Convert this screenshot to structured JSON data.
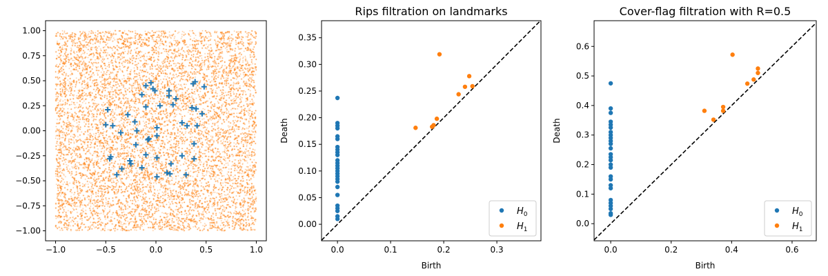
{
  "chart_data": [
    {
      "type": "scatter",
      "title": "",
      "xlabel": "",
      "ylabel": "",
      "xlim": [
        -1.1,
        1.1
      ],
      "ylim": [
        -1.1,
        1.1
      ],
      "xticks": [
        -1.0,
        -0.5,
        0.0,
        0.5,
        1.0
      ],
      "xtick_labels": [
        "−1.0",
        "−0.5",
        "0.0",
        "0.5",
        "1.0"
      ],
      "yticks": [
        -1.0,
        -0.75,
        -0.5,
        -0.25,
        0.0,
        0.25,
        0.5,
        0.75,
        1.0
      ],
      "ytick_labels": [
        "−1.00",
        "−0.75",
        "−0.50",
        "−0.25",
        "0.00",
        "0.25",
        "0.50",
        "0.75",
        "1.00"
      ],
      "series": [
        {
          "name": "points",
          "marker": "dot",
          "color": "#ff7f0e",
          "distribution": "uniform",
          "range": [
            -1,
            1
          ],
          "n": 20000
        },
        {
          "name": "landmarks",
          "marker": "plus",
          "color": "#1f77b4",
          "x": [
            -0.05,
            -0.1,
            -0.03,
            -0.01,
            -0.14,
            0.13,
            0.13,
            0.2,
            0.39,
            0.37,
            0.48,
            -0.48,
            -0.28,
            -0.1,
            0.04,
            0.17,
            0.36,
            0.4,
            0.46,
            -0.5,
            -0.43,
            -0.21,
            -0.35,
            -0.19,
            0.01,
            0.01,
            0.26,
            0.31,
            0.41,
            -0.08,
            -0.07,
            -0.2,
            0.38,
            -0.1,
            -0.45,
            -0.46,
            -0.26,
            -0.25,
            -0.34,
            -0.39,
            -0.14,
            0.01,
            0.26,
            0.38,
            0.15,
            0.11,
            0.14,
            0.3,
            0.01
          ],
          "y": [
            0.48,
            0.45,
            0.42,
            0.4,
            0.36,
            0.4,
            0.35,
            0.32,
            0.49,
            0.47,
            0.44,
            0.21,
            0.16,
            0.24,
            0.25,
            0.26,
            0.23,
            0.22,
            0.17,
            0.06,
            0.05,
            0.09,
            -0.02,
            0.0,
            0.03,
            -0.05,
            0.08,
            0.05,
            0.05,
            -0.09,
            -0.08,
            -0.14,
            -0.13,
            -0.24,
            -0.26,
            -0.28,
            -0.3,
            -0.33,
            -0.38,
            -0.44,
            -0.37,
            -0.27,
            -0.25,
            -0.28,
            -0.33,
            -0.42,
            -0.43,
            -0.44,
            -0.46
          ]
        }
      ]
    },
    {
      "type": "scatter",
      "title": "Rips filtration on landmarks",
      "xlabel": "Birth",
      "ylabel": "Death",
      "xlim": [
        -0.03,
        0.383
      ],
      "ylim": [
        -0.031,
        0.382
      ],
      "xticks": [
        0.0,
        0.1,
        0.2,
        0.3
      ],
      "xtick_labels": [
        "0.0",
        "0.1",
        "0.2",
        "0.3"
      ],
      "yticks": [
        0.0,
        0.05,
        0.1,
        0.15,
        0.2,
        0.25,
        0.3,
        0.35
      ],
      "ytick_labels": [
        "0.00",
        "0.05",
        "0.10",
        "0.15",
        "0.20",
        "0.25",
        "0.30",
        "0.35"
      ],
      "diagonal": true,
      "legend": {
        "placement": "lower-right",
        "entries": [
          {
            "base": "H",
            "sub": "0"
          },
          {
            "base": "H",
            "sub": "1"
          }
        ]
      },
      "series": [
        {
          "name": "H0",
          "color": "#1f77b4",
          "x": [
            0,
            0,
            0,
            0,
            0,
            0,
            0,
            0,
            0,
            0,
            0,
            0,
            0,
            0,
            0,
            0,
            0,
            0,
            0,
            0,
            0,
            0,
            0,
            0,
            0,
            0
          ],
          "y": [
            0.237,
            0.19,
            0.185,
            0.18,
            0.165,
            0.16,
            0.145,
            0.14,
            0.135,
            0.13,
            0.12,
            0.115,
            0.11,
            0.105,
            0.1,
            0.095,
            0.09,
            0.085,
            0.08,
            0.07,
            0.055,
            0.035,
            0.03,
            0.025,
            0.015,
            0.01
          ]
        },
        {
          "name": "H1",
          "color": "#ff7f0e",
          "x": [
            0.147,
            0.178,
            0.181,
            0.187,
            0.192,
            0.228,
            0.24,
            0.248,
            0.254
          ],
          "y": [
            0.181,
            0.183,
            0.186,
            0.198,
            0.319,
            0.244,
            0.258,
            0.278,
            0.259
          ]
        }
      ]
    },
    {
      "type": "scatter",
      "title": "Cover-flag filtration with R=0.5",
      "xlabel": "Birth",
      "ylabel": "Death",
      "xlim": [
        -0.055,
        0.68
      ],
      "ylim": [
        -0.058,
        0.687
      ],
      "xticks": [
        0.0,
        0.2,
        0.4,
        0.6
      ],
      "xtick_labels": [
        "0.0",
        "0.2",
        "0.4",
        "0.6"
      ],
      "yticks": [
        0.0,
        0.1,
        0.2,
        0.3,
        0.4,
        0.5,
        0.6
      ],
      "ytick_labels": [
        "0.0",
        "0.1",
        "0.2",
        "0.3",
        "0.4",
        "0.5",
        "0.6"
      ],
      "diagonal": true,
      "legend": {
        "placement": "lower-right",
        "entries": [
          {
            "base": "H",
            "sub": "0"
          },
          {
            "base": "H",
            "sub": "1"
          }
        ]
      },
      "series": [
        {
          "name": "H0",
          "color": "#1f77b4",
          "x": [
            0,
            0,
            0,
            0,
            0,
            0,
            0,
            0,
            0,
            0,
            0,
            0,
            0,
            0,
            0,
            0,
            0,
            0,
            0,
            0,
            0,
            0,
            0,
            0,
            0,
            0,
            0
          ],
          "y": [
            0.475,
            0.39,
            0.375,
            0.345,
            0.335,
            0.325,
            0.31,
            0.3,
            0.29,
            0.28,
            0.27,
            0.255,
            0.235,
            0.225,
            0.215,
            0.2,
            0.19,
            0.16,
            0.15,
            0.13,
            0.12,
            0.08,
            0.07,
            0.06,
            0.05,
            0.035,
            0.03
          ]
        },
        {
          "name": "H1",
          "color": "#ff7f0e",
          "x": [
            0.31,
            0.34,
            0.372,
            0.372,
            0.403,
            0.452,
            0.473,
            0.487,
            0.487
          ],
          "y": [
            0.382,
            0.352,
            0.382,
            0.395,
            0.572,
            0.474,
            0.488,
            0.525,
            0.51
          ]
        }
      ]
    }
  ]
}
